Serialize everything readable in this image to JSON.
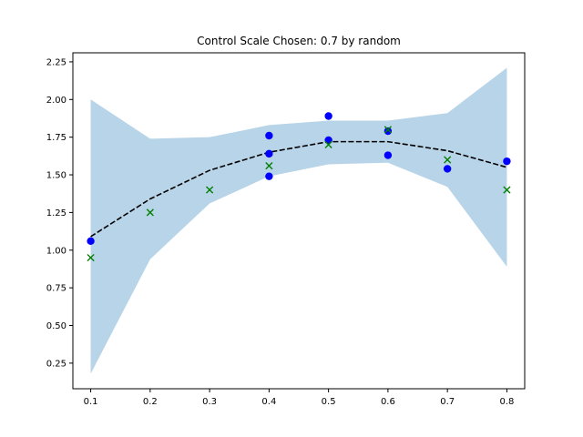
{
  "chart_data": {
    "type": "scatter",
    "title": "Control Scale Chosen: 0.7 by random",
    "xlabel": "",
    "ylabel": "",
    "xlim": [
      0.07,
      0.83
    ],
    "ylim": [
      0.08,
      2.31
    ],
    "x_ticks": [
      0.1,
      0.2,
      0.3,
      0.4,
      0.5,
      0.6,
      0.7,
      0.8
    ],
    "x_tick_labels": [
      "0.1",
      "0.2",
      "0.3",
      "0.4",
      "0.5",
      "0.6",
      "0.7",
      "0.8"
    ],
    "y_ticks": [
      0.25,
      0.5,
      0.75,
      1.0,
      1.25,
      1.5,
      1.75,
      2.0,
      2.25
    ],
    "y_tick_labels": [
      "0.25",
      "0.50",
      "0.75",
      "1.00",
      "1.25",
      "1.50",
      "1.75",
      "2.00",
      "2.25"
    ],
    "grid": false,
    "band": {
      "color": "#b8d4e8",
      "x": [
        0.1,
        0.2,
        0.3,
        0.4,
        0.5,
        0.6,
        0.7,
        0.8
      ],
      "upper": [
        2.0,
        1.74,
        1.75,
        1.83,
        1.86,
        1.86,
        1.91,
        2.21
      ],
      "lower": [
        0.18,
        0.94,
        1.31,
        1.49,
        1.57,
        1.58,
        1.42,
        0.89
      ]
    },
    "mean_line": {
      "color": "#000000",
      "style": "dashed",
      "x": [
        0.1,
        0.2,
        0.3,
        0.4,
        0.5,
        0.6,
        0.7,
        0.8
      ],
      "y": [
        1.09,
        1.34,
        1.53,
        1.65,
        1.72,
        1.72,
        1.66,
        1.55
      ]
    },
    "observed_points": {
      "color": "#0000ff",
      "marker": "circle",
      "x": [
        0.1,
        0.4,
        0.4,
        0.4,
        0.5,
        0.5,
        0.6,
        0.6,
        0.7,
        0.8
      ],
      "y": [
        1.06,
        1.76,
        1.64,
        1.49,
        1.89,
        1.73,
        1.79,
        1.63,
        1.54,
        1.59
      ]
    },
    "true_points": {
      "color": "#007f00",
      "marker": "x",
      "x": [
        0.1,
        0.2,
        0.3,
        0.4,
        0.5,
        0.6,
        0.7,
        0.8
      ],
      "y": [
        0.95,
        1.25,
        1.4,
        1.56,
        1.7,
        1.8,
        1.6,
        1.4
      ]
    }
  }
}
